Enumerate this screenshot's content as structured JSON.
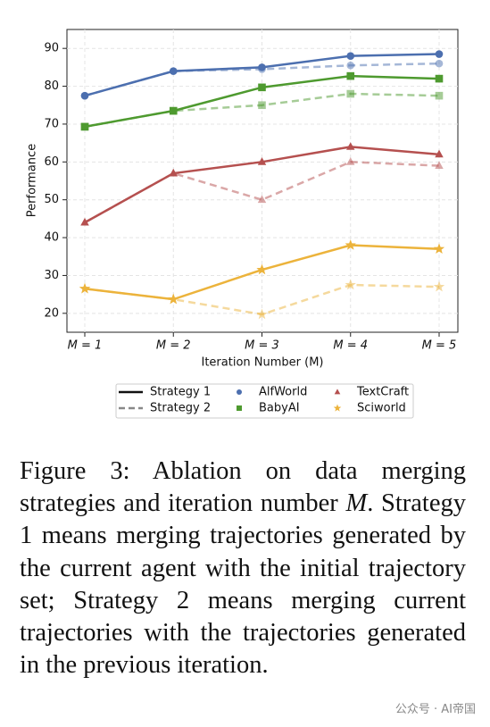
{
  "chart_data": {
    "type": "line",
    "ylabel": "Performance",
    "xlabel": "Iteration Number (M)",
    "categories": [
      "M = 1",
      "M = 2",
      "M = 3",
      "M = 4",
      "M = 5"
    ],
    "ylim": [
      15,
      95
    ],
    "yticks": [
      20,
      30,
      40,
      50,
      60,
      70,
      80,
      90
    ],
    "grid": true,
    "strategies": [
      {
        "name": "Strategy 1",
        "dashed": false
      },
      {
        "name": "Strategy 2",
        "dashed": true
      }
    ],
    "series": [
      {
        "name": "AlfWorld",
        "color": "#4c6faf",
        "marker": "circle",
        "values": [
          [
            77.5,
            84,
            85,
            88,
            88.5
          ],
          [
            77.5,
            84,
            84.5,
            85.5,
            86
          ]
        ]
      },
      {
        "name": "BabyAI",
        "color": "#4e9a2f",
        "marker": "square",
        "values": [
          [
            69.3,
            73.5,
            79.7,
            82.7,
            82
          ],
          [
            69.3,
            73.5,
            75,
            78,
            77.5
          ]
        ]
      },
      {
        "name": "TextCraft",
        "color": "#b5504f",
        "marker": "triangle",
        "values": [
          [
            44,
            57,
            60,
            64,
            62
          ],
          [
            44,
            57,
            50,
            60,
            59
          ]
        ]
      },
      {
        "name": "Sciworld",
        "color": "#ecb33b",
        "marker": "star",
        "values": [
          [
            26.5,
            23.7,
            31.5,
            38,
            37
          ],
          [
            26.5,
            23.7,
            19.7,
            27.5,
            27
          ]
        ]
      }
    ]
  },
  "caption": {
    "before": "Figure 3: Ablation on data merging strategies and iteration number ",
    "symbol": "M",
    "after": ". Strategy 1 means merging trajectories generated by the current agent with the initial trajectory set; Strategy 2 means merging current trajectories with the trajectories generated in the previous iteration."
  },
  "watermark": "公众号 · AI帝国"
}
